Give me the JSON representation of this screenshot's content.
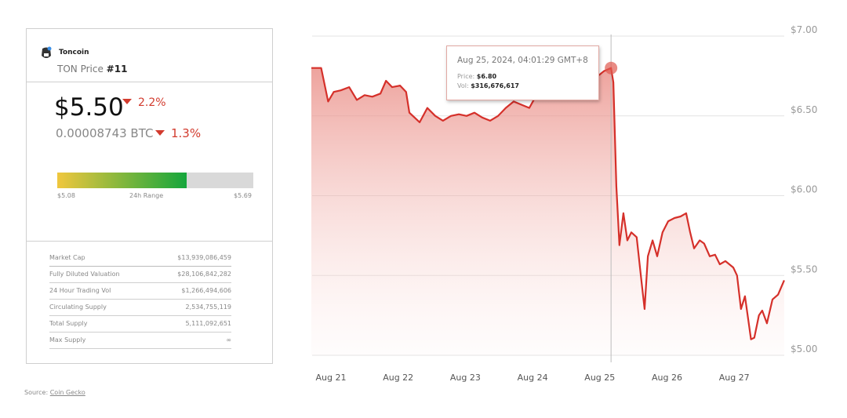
{
  "coin": {
    "name": "Toncoin",
    "ticker_label": "TON Price",
    "rank": "#11",
    "icon": "toncoin-logo"
  },
  "price": {
    "usd": "$5.50",
    "usd_change": "2.2%",
    "btc": "0.00008743 BTC",
    "btc_change": "1.3%",
    "direction": "down",
    "down_color": "#d23b2e"
  },
  "range": {
    "low": "$5.08",
    "label": "24h Range",
    "high": "$5.69",
    "fill_fraction": 0.66
  },
  "stats": [
    {
      "label": "Market Cap",
      "value": "$13,939,086,459"
    },
    {
      "label": "Fully Diluted Valuation",
      "value": "$28,106,842,282"
    },
    {
      "label": "24 Hour Trading Vol",
      "value": "$1,266,494,606"
    },
    {
      "label": "Circulating Supply",
      "value": "2,534,755,119"
    },
    {
      "label": "Total Supply",
      "value": "5,111,092,651"
    },
    {
      "label": "Max Supply",
      "value": "∞"
    }
  ],
  "source": {
    "label": "Source:",
    "link": "Coin Gecko"
  },
  "tooltip": {
    "date": "Aug 25, 2024, 04:01:29 GMT+8",
    "price_label": "Price:",
    "price": "$6.80",
    "vol_label": "Vol:",
    "vol": "$316,676,617"
  },
  "chart_data": {
    "type": "area",
    "line_color": "#d5302a",
    "ylim": [
      5.0,
      7.0
    ],
    "y_ticks": [
      {
        "v": 7.0,
        "label": "$7.00"
      },
      {
        "v": 6.5,
        "label": "$6.50"
      },
      {
        "v": 6.0,
        "label": "$6.00"
      },
      {
        "v": 5.5,
        "label": "$5.50"
      },
      {
        "v": 5.0,
        "label": "$5.00"
      }
    ],
    "x_ticks": [
      {
        "t": "2024-08-21T00:00",
        "label": "Aug 21"
      },
      {
        "t": "2024-08-22T00:00",
        "label": "Aug 22"
      },
      {
        "t": "2024-08-23T00:00",
        "label": "Aug 23"
      },
      {
        "t": "2024-08-24T00:00",
        "label": "Aug 24"
      },
      {
        "t": "2024-08-25T00:00",
        "label": "Aug 25"
      },
      {
        "t": "2024-08-26T00:00",
        "label": "Aug 26"
      },
      {
        "t": "2024-08-27T00:00",
        "label": "Aug 27"
      }
    ],
    "grid": true,
    "highlight": {
      "t": "2024-08-25T04:01",
      "price": 6.8
    },
    "points": [
      [
        "2024-08-20T17:00",
        6.8
      ],
      [
        "2024-08-20T20:30",
        6.8
      ],
      [
        "2024-08-20T23:00",
        6.59
      ],
      [
        "2024-08-21T01:00",
        6.65
      ],
      [
        "2024-08-21T03:30",
        6.66
      ],
      [
        "2024-08-21T06:30",
        6.68
      ],
      [
        "2024-08-21T09:15",
        6.6
      ],
      [
        "2024-08-21T12:00",
        6.63
      ],
      [
        "2024-08-21T14:45",
        6.62
      ],
      [
        "2024-08-21T17:40",
        6.64
      ],
      [
        "2024-08-21T19:40",
        6.72
      ],
      [
        "2024-08-21T21:50",
        6.68
      ],
      [
        "2024-08-22T00:40",
        6.69
      ],
      [
        "2024-08-22T02:50",
        6.65
      ],
      [
        "2024-08-22T04:00",
        6.52
      ],
      [
        "2024-08-22T07:40",
        6.46
      ],
      [
        "2024-08-22T10:25",
        6.55
      ],
      [
        "2024-08-22T13:15",
        6.5
      ],
      [
        "2024-08-22T16:00",
        6.47
      ],
      [
        "2024-08-22T18:50",
        6.5
      ],
      [
        "2024-08-22T21:40",
        6.51
      ],
      [
        "2024-08-23T00:25",
        6.5
      ],
      [
        "2024-08-23T03:15",
        6.52
      ],
      [
        "2024-08-23T06:00",
        6.49
      ],
      [
        "2024-08-23T08:50",
        6.47
      ],
      [
        "2024-08-23T11:40",
        6.5
      ],
      [
        "2024-08-23T14:25",
        6.55
      ],
      [
        "2024-08-23T17:15",
        6.59
      ],
      [
        "2024-08-23T20:00",
        6.57
      ],
      [
        "2024-08-23T22:50",
        6.55
      ],
      [
        "2024-08-24T01:40",
        6.64
      ],
      [
        "2024-08-24T05:50",
        6.69
      ],
      [
        "2024-08-24T11:25",
        6.72
      ],
      [
        "2024-08-24T17:00",
        6.73
      ],
      [
        "2024-08-24T22:40",
        6.74
      ],
      [
        "2024-08-25T01:25",
        6.78
      ],
      [
        "2024-08-25T04:01",
        6.8
      ],
      [
        "2024-08-25T04:50",
        6.71
      ],
      [
        "2024-08-25T05:55",
        6.06
      ],
      [
        "2024-08-25T07:00",
        5.69
      ],
      [
        "2024-08-25T08:25",
        5.89
      ],
      [
        "2024-08-25T09:50",
        5.72
      ],
      [
        "2024-08-25T11:15",
        5.77
      ],
      [
        "2024-08-25T13:10",
        5.74
      ],
      [
        "2024-08-25T14:50",
        5.47
      ],
      [
        "2024-08-25T16:00",
        5.29
      ],
      [
        "2024-08-25T17:10",
        5.62
      ],
      [
        "2024-08-25T18:50",
        5.72
      ],
      [
        "2024-08-25T20:30",
        5.62
      ],
      [
        "2024-08-25T22:25",
        5.77
      ],
      [
        "2024-08-26T00:25",
        5.84
      ],
      [
        "2024-08-26T02:40",
        5.86
      ],
      [
        "2024-08-26T04:50",
        5.87
      ],
      [
        "2024-08-26T06:50",
        5.89
      ],
      [
        "2024-08-26T08:15",
        5.77
      ],
      [
        "2024-08-26T09:40",
        5.67
      ],
      [
        "2024-08-26T11:40",
        5.72
      ],
      [
        "2024-08-26T13:15",
        5.7
      ],
      [
        "2024-08-26T15:15",
        5.62
      ],
      [
        "2024-08-26T17:10",
        5.63
      ],
      [
        "2024-08-26T18:50",
        5.57
      ],
      [
        "2024-08-26T20:50",
        5.59
      ],
      [
        "2024-08-26T23:40",
        5.55
      ],
      [
        "2024-08-27T01:00",
        5.5
      ],
      [
        "2024-08-27T02:25",
        5.29
      ],
      [
        "2024-08-27T03:50",
        5.37
      ],
      [
        "2024-08-27T06:00",
        5.1
      ],
      [
        "2024-08-27T07:10",
        5.11
      ],
      [
        "2024-08-27T08:50",
        5.25
      ],
      [
        "2024-08-27T10:00",
        5.28
      ],
      [
        "2024-08-27T11:40",
        5.2
      ],
      [
        "2024-08-27T13:40",
        5.35
      ],
      [
        "2024-08-27T15:40",
        5.38
      ],
      [
        "2024-08-27T17:50",
        5.47
      ]
    ]
  }
}
